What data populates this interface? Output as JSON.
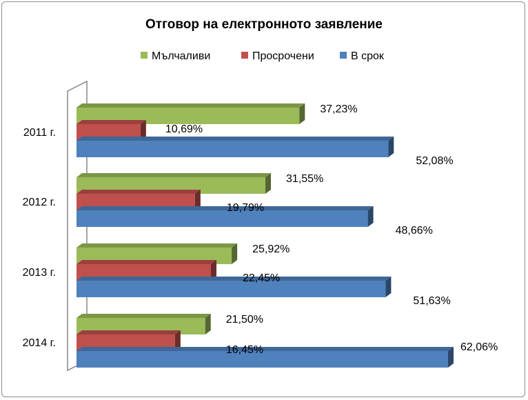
{
  "chart_data": {
    "type": "bar",
    "orientation": "horizontal",
    "three_d": true,
    "title": "Отговор на електронното заявление",
    "categories": [
      "2011 г.",
      "2012 г.",
      "2013 г.",
      "2014 г."
    ],
    "series": [
      {
        "name": "Мълчаливи",
        "color": "#9bbb59",
        "values": [
          37.23,
          31.55,
          25.92,
          21.5
        ],
        "labels": [
          "37,23%",
          "31,55%",
          "25,92%",
          "21,50%"
        ]
      },
      {
        "name": "Просрочени",
        "color": "#c0504d",
        "values": [
          10.69,
          19.79,
          22.45,
          16.45
        ],
        "labels": [
          "10,69%",
          "19,79%",
          "22,45%",
          "16,45%"
        ]
      },
      {
        "name": "В срок",
        "color": "#4f81bd",
        "values": [
          52.08,
          48.66,
          51.63,
          62.06
        ],
        "labels": [
          "52,08%",
          "48,66%",
          "51,63%",
          "62,06%"
        ]
      }
    ],
    "xlim": [
      0,
      62.06
    ],
    "grid": false,
    "legend_position": "top"
  }
}
